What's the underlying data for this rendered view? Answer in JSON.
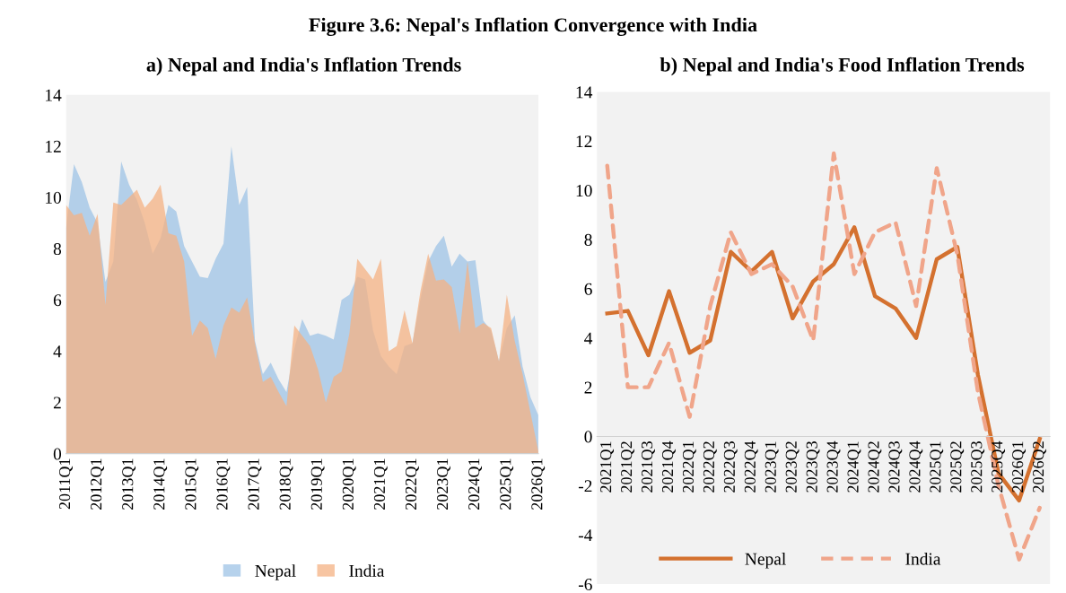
{
  "chart_data": [
    {
      "type": "area",
      "title": "Figure 3.6: Nepal's Inflation Convergence with India",
      "subtitle": "a) Nepal and India's Inflation Trends",
      "categories": [
        "2011Q1",
        null,
        null,
        null,
        "2012Q1",
        null,
        null,
        null,
        "2013Q1",
        null,
        null,
        null,
        "2014Q1",
        null,
        null,
        null,
        "2015Q1",
        null,
        null,
        null,
        "2016Q1",
        null,
        null,
        null,
        "2017Q1",
        null,
        null,
        null,
        "2018Q1",
        null,
        null,
        null,
        "2019Q1",
        null,
        null,
        null,
        "2020Q1",
        null,
        null,
        null,
        "2021Q1",
        null,
        null,
        null,
        "2022Q1",
        null,
        null,
        null,
        "2023Q1",
        null,
        null,
        null,
        "2024Q1",
        null,
        null,
        null,
        "2025Q1",
        null,
        null,
        null,
        "2026Q1"
      ],
      "series": [
        {
          "name": "Nepal",
          "color": "#9dc3e6",
          "values": [
            8.8,
            11.3,
            10.6,
            9.6,
            9.0,
            6.7,
            7.5,
            11.4,
            10.5,
            9.9,
            9.0,
            7.8,
            8.4,
            9.7,
            9.45,
            8.1,
            7.5,
            6.9,
            6.85,
            7.6,
            8.2,
            12.0,
            9.7,
            10.4,
            4.4,
            3.1,
            3.55,
            2.9,
            2.4,
            4.1,
            5.25,
            4.6,
            4.7,
            4.6,
            4.45,
            6.0,
            6.2,
            6.9,
            6.8,
            4.8,
            3.8,
            3.4,
            3.1,
            4.2,
            4.3,
            6.0,
            7.5,
            8.1,
            8.5,
            7.3,
            7.8,
            7.5,
            7.55,
            5.2,
            4.8,
            3.6,
            4.9,
            5.4,
            3.4,
            2.2,
            1.5
          ]
        },
        {
          "name": "India",
          "color": "#f4b183",
          "values": [
            9.7,
            9.3,
            9.4,
            8.5,
            9.35,
            5.8,
            9.8,
            9.7,
            10.0,
            10.3,
            9.6,
            9.95,
            10.5,
            8.6,
            8.5,
            7.5,
            4.6,
            5.2,
            4.9,
            3.7,
            5.0,
            5.7,
            5.5,
            6.1,
            4.3,
            2.8,
            3.0,
            2.4,
            1.85,
            5.0,
            4.6,
            4.2,
            3.3,
            2.0,
            3.0,
            3.2,
            4.7,
            7.6,
            7.2,
            6.8,
            7.6,
            4.0,
            4.2,
            5.6,
            4.3,
            6.3,
            7.8,
            6.75,
            6.8,
            6.5,
            4.7,
            7.5,
            4.9,
            5.1,
            4.9,
            3.6,
            6.2,
            4.4,
            3.1,
            1.6,
            0.1
          ]
        }
      ],
      "ylim": [
        0,
        14
      ],
      "yticks": [
        0,
        2,
        4,
        6,
        8,
        10,
        12,
        14
      ],
      "grid": false,
      "legend": "bottom"
    },
    {
      "type": "line",
      "subtitle": "b) Nepal and India's Food Inflation Trends",
      "categories": [
        "2021Q1",
        "2021Q2",
        "2021Q3",
        "2021Q4",
        "2022Q1",
        "2022Q2",
        "2022Q3",
        "2022Q4",
        "2023Q1",
        "2023Q2",
        "2023Q3",
        "2023Q4",
        "2024Q1",
        "2024Q2",
        "2024Q3",
        "2024Q4",
        "2025Q1",
        "2025Q2",
        "2025Q3",
        "2025Q4",
        "2026Q1",
        "2026Q2"
      ],
      "series": [
        {
          "name": "Nepal",
          "color": "#d4712f",
          "line_style": "solid",
          "values": [
            5.0,
            5.1,
            3.3,
            5.9,
            3.4,
            3.9,
            7.5,
            6.7,
            7.5,
            4.8,
            6.3,
            7.0,
            8.5,
            5.7,
            5.2,
            4.0,
            7.2,
            7.7,
            2.5,
            -1.5,
            -2.6,
            -0.1
          ]
        },
        {
          "name": "India",
          "color": "#f0a58a",
          "line_style": "dashed",
          "values": [
            11.0,
            2.0,
            2.0,
            3.8,
            0.8,
            5.3,
            8.3,
            6.6,
            7.0,
            6.1,
            3.9,
            11.5,
            6.6,
            8.3,
            8.7,
            5.3,
            10.9,
            7.4,
            1.8,
            -2.0,
            -5.0,
            -2.9
          ]
        }
      ],
      "ylim": [
        -6,
        14
      ],
      "yticks": [
        -6,
        -4,
        -2,
        0,
        2,
        4,
        6,
        8,
        10,
        12,
        14
      ],
      "grid": false,
      "legend": "bottom"
    }
  ]
}
